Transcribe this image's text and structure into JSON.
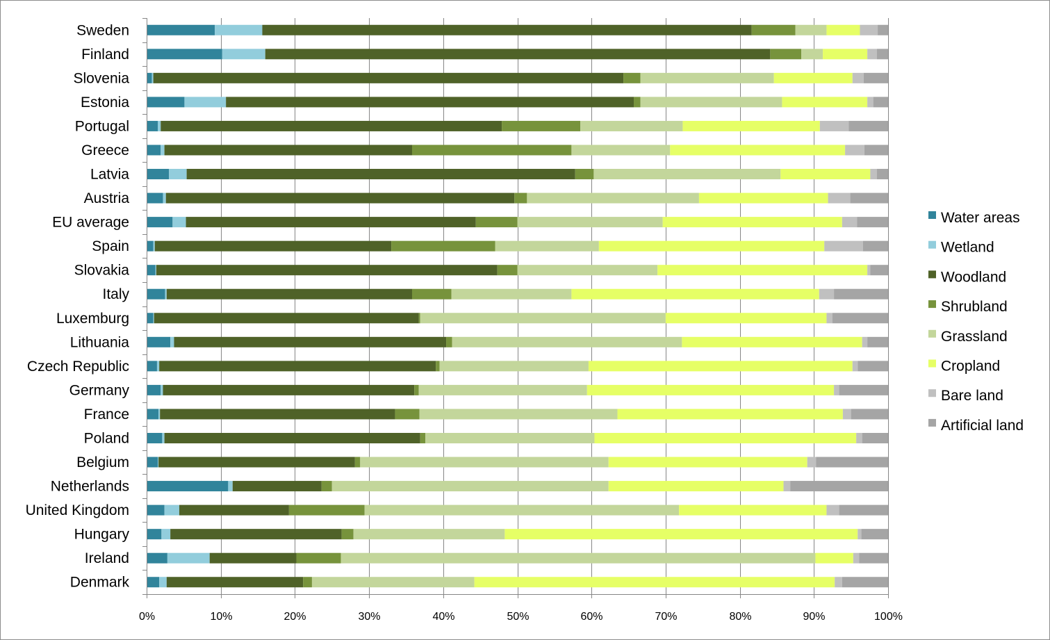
{
  "chart_data": {
    "type": "bar",
    "orientation": "horizontal",
    "stacked": "percent",
    "categories": [
      "Sweden",
      "Finland",
      "Slovenia",
      "Estonia",
      "Portugal",
      "Greece",
      "Latvia",
      "Austria",
      "EU average",
      "Spain",
      "Slovakia",
      "Italy",
      "Luxemburg",
      "Lithuania",
      "Czech Republic",
      "Germany",
      "France",
      "Poland",
      "Belgium",
      "Netherlands",
      "United Kingdom",
      "Hungary",
      "Ireland",
      "Denmark"
    ],
    "x_ticks": [
      "0%",
      "10%",
      "20%",
      "30%",
      "40%",
      "50%",
      "60%",
      "70%",
      "80%",
      "90%",
      "100%"
    ],
    "xlim": [
      0,
      100
    ],
    "grid": true,
    "legend_position": "right",
    "series": [
      {
        "name": "Water areas",
        "color": "#31849b",
        "values": [
          9.2,
          10.2,
          0.7,
          5.1,
          1.5,
          1.9,
          3.0,
          2.2,
          3.5,
          0.9,
          1.2,
          2.5,
          0.9,
          3.2,
          1.4,
          1.9,
          1.6,
          2.1,
          1.5,
          11.0,
          2.4,
          2.0,
          2.8,
          1.7
        ]
      },
      {
        "name": "Wetland",
        "color": "#92cddc",
        "values": [
          6.4,
          5.8,
          0.2,
          5.6,
          0.4,
          0.5,
          2.4,
          0.4,
          1.8,
          0.2,
          0.1,
          0.2,
          0.1,
          0.5,
          0.3,
          0.3,
          0.2,
          0.3,
          0.1,
          0.6,
          2.0,
          1.2,
          5.7,
          1.0
        ]
      },
      {
        "name": "Woodland",
        "color": "#4f6228",
        "values": [
          66.0,
          68.1,
          63.4,
          55.0,
          46.0,
          33.4,
          52.4,
          47.0,
          39.1,
          31.9,
          46.0,
          33.1,
          35.7,
          36.7,
          37.3,
          33.9,
          31.7,
          34.5,
          26.5,
          12.0,
          14.8,
          23.1,
          11.7,
          18.4
        ]
      },
      {
        "name": "Shrubland",
        "color": "#77933c",
        "values": [
          5.9,
          4.2,
          2.3,
          0.9,
          10.6,
          21.5,
          2.5,
          1.7,
          5.6,
          14.0,
          2.7,
          5.3,
          0.2,
          0.8,
          0.5,
          0.6,
          3.3,
          0.7,
          0.7,
          1.4,
          10.2,
          1.6,
          6.0,
          1.2
        ]
      },
      {
        "name": "Grassland",
        "color": "#c3d69b",
        "values": [
          4.2,
          2.9,
          18.0,
          19.1,
          13.8,
          13.3,
          25.2,
          23.2,
          19.6,
          14.0,
          18.9,
          16.2,
          33.1,
          31.0,
          20.1,
          22.7,
          26.7,
          22.8,
          33.5,
          37.3,
          42.4,
          20.4,
          64.0,
          21.9
        ]
      },
      {
        "name": "Cropland",
        "color": "#e6ff66",
        "values": [
          4.5,
          6.0,
          10.6,
          11.5,
          18.5,
          23.6,
          12.1,
          17.4,
          24.2,
          30.4,
          28.3,
          33.4,
          21.7,
          24.3,
          35.6,
          33.3,
          30.4,
          35.3,
          26.8,
          23.6,
          19.9,
          47.6,
          5.1,
          48.6
        ]
      },
      {
        "name": "Bare land",
        "color": "#c0c0c0",
        "values": [
          2.4,
          1.3,
          1.5,
          0.8,
          3.9,
          2.6,
          0.9,
          3.0,
          2.0,
          5.2,
          0.4,
          2.0,
          0.8,
          0.7,
          0.7,
          0.7,
          1.1,
          0.8,
          1.2,
          0.9,
          1.7,
          0.5,
          0.8,
          1.0
        ]
      },
      {
        "name": "Artificial land",
        "color": "#a5a5a5",
        "values": [
          1.4,
          1.5,
          3.3,
          2.0,
          5.3,
          3.2,
          1.5,
          5.1,
          4.2,
          3.4,
          2.4,
          7.3,
          7.5,
          2.8,
          4.1,
          6.6,
          5.0,
          3.5,
          9.7,
          13.2,
          6.6,
          3.6,
          3.9,
          6.2
        ]
      }
    ]
  }
}
